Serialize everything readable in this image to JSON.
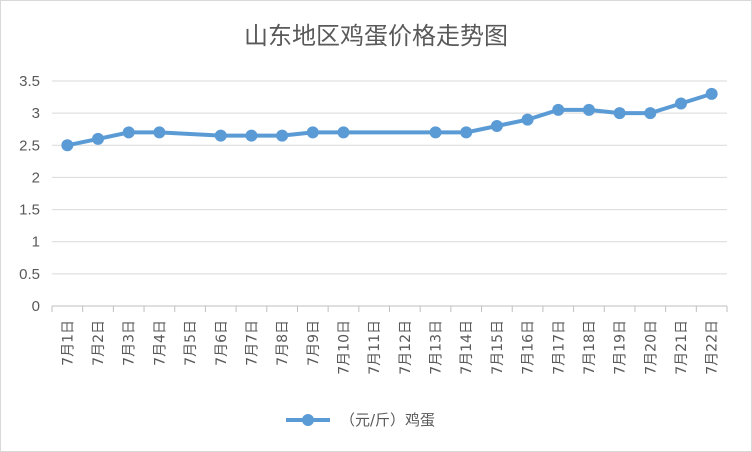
{
  "chart_data": {
    "type": "line",
    "title": "山东地区鸡蛋价格走势图",
    "xlabel": "",
    "ylabel": "",
    "ylim": [
      0,
      3.5
    ],
    "yticks": [
      "0",
      "0.5",
      "1",
      "1.5",
      "2",
      "2.5",
      "3",
      "3.5"
    ],
    "grid": true,
    "legend": "bottom",
    "categories": [
      "7月1日",
      "7月2日",
      "7月3日",
      "7月4日",
      "7月5日",
      "7月6日",
      "7月7日",
      "7月8日",
      "7月9日",
      "7月10日",
      "7月11日",
      "7月12日",
      "7月13日",
      "7月14日",
      "7月15日",
      "7月16日",
      "7月17日",
      "7月18日",
      "7月19日",
      "7月20日",
      "7月21日",
      "7月22日"
    ],
    "series": [
      {
        "name": "（元/斤）鸡蛋",
        "color": "#5b9bd5",
        "values": [
          2.5,
          2.6,
          2.7,
          2.7,
          null,
          2.65,
          2.65,
          2.65,
          2.7,
          2.7,
          null,
          null,
          2.7,
          2.7,
          2.8,
          2.9,
          3.05,
          3.05,
          3.0,
          3.0,
          3.15,
          3.3
        ]
      }
    ]
  }
}
